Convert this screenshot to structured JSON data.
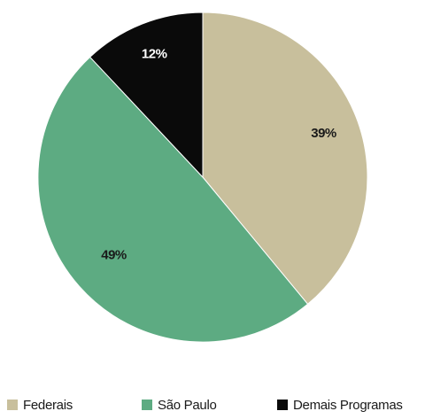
{
  "chart_data": {
    "type": "pie",
    "title": "",
    "slices": [
      {
        "name": "Federais",
        "value": 39,
        "label": "39%",
        "color": "#c8bf9c",
        "label_color": "#1a1a1a"
      },
      {
        "name": "São Paulo",
        "value": 49,
        "label": "49%",
        "color": "#5dab82",
        "label_color": "#1a1a1a"
      },
      {
        "name": "Demais Programas",
        "value": 12,
        "label": "12%",
        "color": "#0a0a0a",
        "label_color": "#ffffff"
      }
    ],
    "legend": {
      "position": "bottom",
      "items": [
        "Federais",
        "São Paulo",
        "Demais Programas"
      ]
    }
  }
}
